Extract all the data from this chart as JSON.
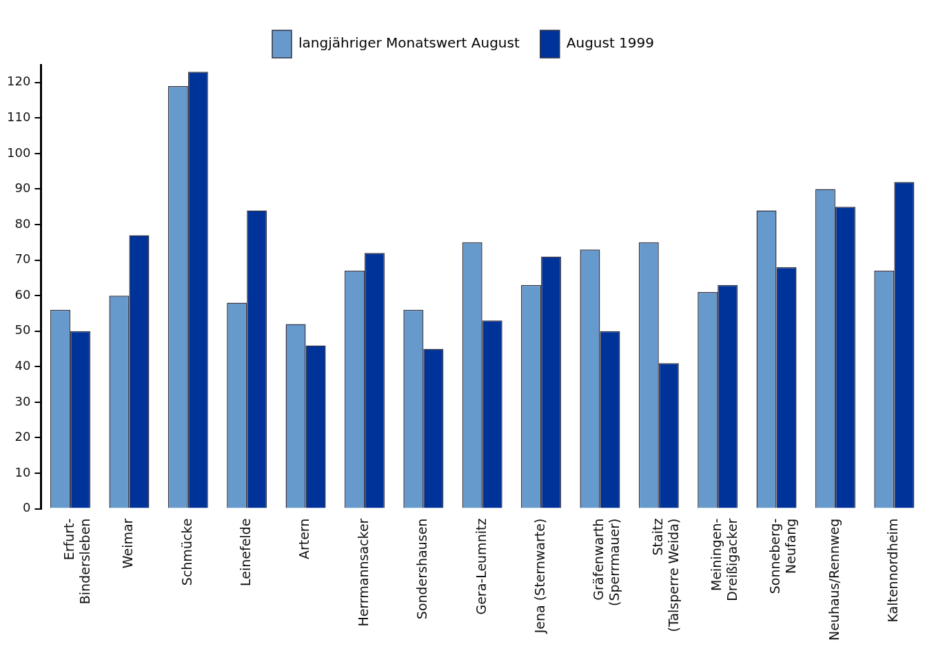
{
  "chart_data": {
    "type": "bar",
    "categories": [
      "Erfurt-\nBindersleben",
      "Weimar",
      "Schmücke",
      "Leinefelde",
      "Artern",
      "Herrmannsacker",
      "Sondershausen",
      "Gera-Leumnitz",
      "Jena (Sternwarte)",
      "Gräfenwarth\n(Sperrmauer)",
      "Staitz\n(Talsperre Weida)",
      "Meiningen-\nDreißigacker",
      "Sonneberg-\nNeufang",
      "Neuhaus/Rennweg",
      "Kaltennordheim"
    ],
    "series": [
      {
        "name": "langjähriger Monatswert August",
        "color": "#6699cc",
        "values": [
          56,
          60,
          119,
          58,
          52,
          67,
          56,
          75,
          63,
          73,
          75,
          61,
          84,
          90,
          67
        ]
      },
      {
        "name": "August 1999",
        "color": "#003399",
        "values": [
          50,
          77,
          123,
          84,
          46,
          72,
          45,
          53,
          71,
          50,
          41,
          63,
          68,
          85,
          92
        ]
      }
    ],
    "ylim": [
      0,
      125
    ],
    "yticks": [
      0,
      10,
      20,
      30,
      40,
      50,
      60,
      70,
      80,
      90,
      100,
      110,
      120
    ],
    "grid": false,
    "legend": "top"
  }
}
